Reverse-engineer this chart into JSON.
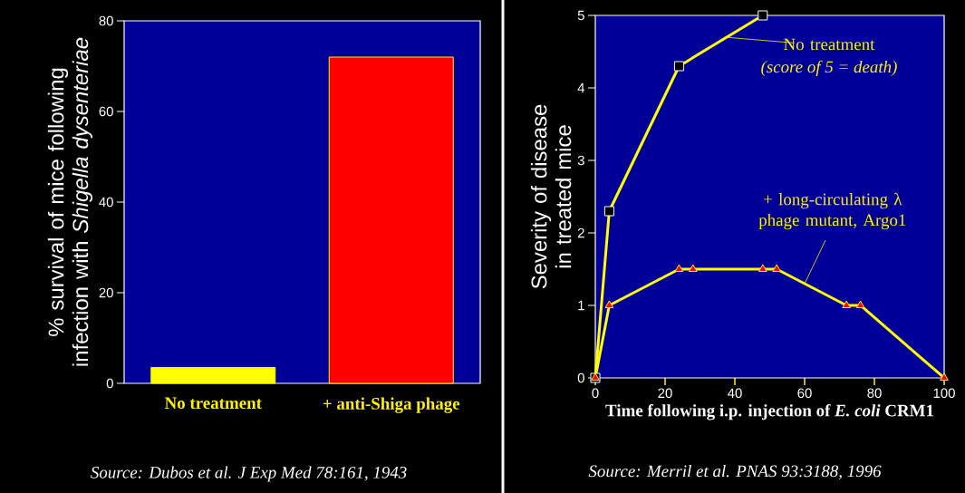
{
  "chart_data": [
    {
      "type": "bar",
      "categories": [
        "No treatment",
        "+ anti-Shiga phage"
      ],
      "values": [
        3.5,
        72
      ],
      "colors": [
        "#ffff00",
        "#ff0000"
      ],
      "ylabel": "% survival of mice following infection with *Shigella dysenteriae*",
      "ylim": [
        0,
        80
      ],
      "yticks": [
        0,
        20,
        40,
        60,
        80
      ],
      "annotations": [
        "Source: Dubos et al.  J Exp Med 78:161, 1943"
      ]
    },
    {
      "type": "line",
      "xlabel": "Time following i.p. injection of *E. coli* CRM1",
      "ylabel": "Severity of disease in treated mice",
      "xlim": [
        0,
        100
      ],
      "xticks": [
        0,
        20,
        40,
        60,
        80,
        100
      ],
      "ylim": [
        0,
        5
      ],
      "yticks": [
        0,
        1,
        2,
        3,
        4,
        5
      ],
      "series": [
        {
          "name": "No treatment",
          "color": "#ffff00",
          "marker": "square",
          "x": [
            0,
            4,
            24,
            48
          ],
          "values": [
            0,
            2.3,
            4.3,
            5
          ]
        },
        {
          "name": "+ long-circulating λ phage mutant, Argo1",
          "color": "#ffff00",
          "marker": "triangle",
          "x": [
            0,
            4,
            24,
            28,
            48,
            52,
            72,
            76,
            100
          ],
          "values": [
            0,
            1,
            1.5,
            1.5,
            1.5,
            1.5,
            1,
            1,
            0
          ]
        }
      ],
      "annotations": [
        {
          "text": "(score of 5 = death)",
          "x": 37,
          "y": 4.7
        },
        "Source: Merril et al.  PNAS 93:3188, 1996"
      ]
    }
  ]
}
